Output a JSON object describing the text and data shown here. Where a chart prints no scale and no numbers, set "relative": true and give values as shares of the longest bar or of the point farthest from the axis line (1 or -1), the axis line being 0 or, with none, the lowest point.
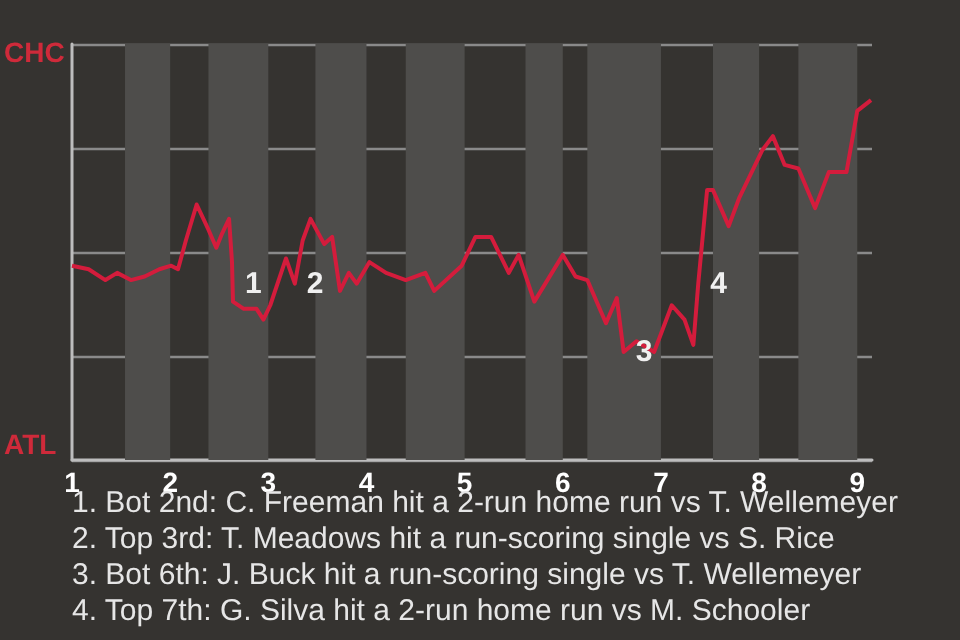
{
  "chart_data": {
    "type": "line",
    "relative": true,
    "x": [
      1,
      1.17,
      1.34,
      1.46,
      1.6,
      1.74,
      1.89,
      2.01,
      2.08,
      2.16,
      2.27,
      2.39,
      2.47,
      2.53,
      2.6,
      2.63,
      2.64,
      2.75,
      2.88,
      2.95,
      3.02,
      3.18,
      3.27,
      3.35,
      3.43,
      3.57,
      3.65,
      3.73,
      3.82,
      3.9,
      4.03,
      4.2,
      4.4,
      4.6,
      4.69,
      4.97,
      5.11,
      5.27,
      5.45,
      5.55,
      5.71,
      6,
      6.13,
      6.25,
      6.44,
      6.55,
      6.62,
      6.75,
      6.93,
      7.11,
      7.24,
      7.33,
      7.38,
      7.47,
      7.53,
      7.69,
      7.8,
      8.03,
      8.14,
      8.26,
      8.4,
      8.57,
      8.71,
      8.89,
      9,
      9.14
    ],
    "series": [
      {
        "color": "#d41c3c",
        "values": [
          0.54,
          0.53,
          0.5,
          0.52,
          0.5,
          0.51,
          0.53,
          0.54,
          0.53,
          0.61,
          0.71,
          0.64,
          0.59,
          0.63,
          0.67,
          0.55,
          0.44,
          0.42,
          0.42,
          0.39,
          0.43,
          0.56,
          0.49,
          0.61,
          0.67,
          0.6,
          0.62,
          0.47,
          0.52,
          0.49,
          0.55,
          0.52,
          0.5,
          0.52,
          0.47,
          0.54,
          0.62,
          0.62,
          0.52,
          0.57,
          0.44,
          0.57,
          0.51,
          0.5,
          0.38,
          0.45,
          0.3,
          0.33,
          0.3,
          0.43,
          0.39,
          0.32,
          0.49,
          0.75,
          0.75,
          0.65,
          0.73,
          0.86,
          0.9,
          0.82,
          0.81,
          0.7,
          0.8,
          0.8,
          0.97,
          1
        ]
      }
    ],
    "xlim": [
      1,
      9.15
    ],
    "xticks": [
      1,
      2,
      3,
      4,
      5,
      6,
      7,
      8,
      9
    ],
    "grid": "y",
    "marker": "none",
    "bands": [
      {
        "axis": "x",
        "from": 1.54,
        "to": 2,
        "color": "#4e4d4b"
      },
      {
        "axis": "x",
        "from": 2.39,
        "to": 3,
        "color": "#4e4d4b"
      },
      {
        "axis": "x",
        "from": 3.48,
        "to": 4,
        "color": "#4e4d4b"
      },
      {
        "axis": "x",
        "from": 4.4,
        "to": 5,
        "color": "#4e4d4b"
      },
      {
        "axis": "x",
        "from": 5.62,
        "to": 6,
        "color": "#4e4d4b"
      },
      {
        "axis": "x",
        "from": 6.25,
        "to": 7,
        "color": "#4e4d4b"
      },
      {
        "axis": "x",
        "from": 7.53,
        "to": 8,
        "color": "#4e4d4b"
      },
      {
        "axis": "x",
        "from": 8.4,
        "to": 9,
        "color": "#4e4d4b"
      }
    ],
    "annotations": [
      "CHC",
      "ATL",
      {
        "text": "1",
        "x": 2.64,
        "y": 0.49
      },
      {
        "text": "2",
        "x": 3.27,
        "y": 0.49
      },
      {
        "text": "3",
        "x": 6.62,
        "y": 0.3
      },
      {
        "text": "4",
        "x": 7.38,
        "y": 0.49
      },
      "1. Bot 2nd: C. Freeman hit a 2-run home run vs T. Wellemeyer",
      "2. Top 3rd: T. Meadows hit a run-scoring single vs S. Rice",
      "3. Bot 6th: J. Buck hit a run-scoring single vs T. Wellemeyer",
      "4. Top 7th: G. Silva hit a 2-run home run vs M. Schooler"
    ]
  }
}
